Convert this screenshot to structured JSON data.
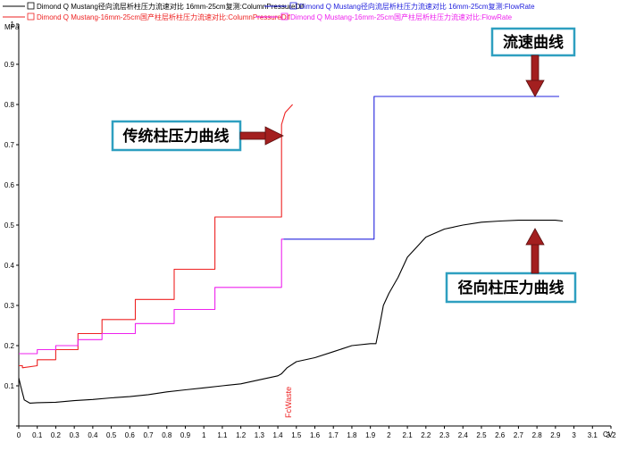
{
  "legend": [
    {
      "text": "Dimond Q Mustang径向流层析柱压力流速对比 16mm-25cm复测:ColumnPressureDif",
      "color": "#000000"
    },
    {
      "text": "Dimond Q Mustang径向流层析柱压力流速对比 16mm-25cm复测:FlowRate",
      "color": "#2222dd"
    },
    {
      "text": "Dimond Q Mustang-16mm-25cm国产柱层析柱压力流速对比:ColumnPressureDif",
      "color": "#ee2222"
    },
    {
      "text": "Dimond Q Mustang-16mm-25cm国产柱层析柱压力流速对比:FlowRate",
      "color": "#ee22ee"
    }
  ],
  "callouts": {
    "flow": "流速曲线",
    "traditional": "传统柱压力曲线",
    "radial": "径向柱压力曲线"
  },
  "annotation": "FcWaste",
  "chart_data": {
    "type": "line",
    "ylabel": "MPa",
    "xlabel": "CV",
    "xlim": [
      0,
      3.2
    ],
    "ylim": [
      0,
      1.0
    ],
    "x_ticks": [
      "0",
      "0.1",
      "0.2",
      "0.3",
      "0.4",
      "0.5",
      "0.6",
      "0.7",
      "0.8",
      "0.9",
      "1",
      "1.1",
      "1.2",
      "1.3",
      "1.4",
      "1.5",
      "1.6",
      "1.7",
      "1.8",
      "1.9",
      "2",
      "2.1",
      "2.2",
      "2.3",
      "2.4",
      "2.5",
      "2.6",
      "2.7",
      "2.8",
      "2.9",
      "3",
      "3.1",
      "3.2"
    ],
    "y_ticks": [
      "0",
      "0.1",
      "0.2",
      "0.3",
      "0.4",
      "0.5",
      "0.6",
      "0.7",
      "0.8",
      "0.9",
      "1"
    ],
    "series": [
      {
        "name": "Dimond Q Mustang径向流层析柱压力流速对比 16mm-25cm复测:ColumnPressureDif",
        "color": "#000000",
        "x": [
          0,
          0.01,
          0.03,
          0.06,
          0.1,
          0.2,
          0.3,
          0.4,
          0.5,
          0.6,
          0.7,
          0.8,
          0.9,
          1.0,
          1.1,
          1.2,
          1.3,
          1.4,
          1.42,
          1.45,
          1.5,
          1.6,
          1.7,
          1.8,
          1.9,
          1.93,
          1.95,
          1.97,
          2.0,
          2.05,
          2.1,
          2.2,
          2.3,
          2.4,
          2.5,
          2.6,
          2.7,
          2.8,
          2.9,
          2.94
        ],
        "y": [
          0.12,
          0.1,
          0.065,
          0.057,
          0.058,
          0.059,
          0.063,
          0.066,
          0.07,
          0.073,
          0.078,
          0.085,
          0.09,
          0.095,
          0.1,
          0.105,
          0.115,
          0.125,
          0.13,
          0.145,
          0.16,
          0.17,
          0.185,
          0.2,
          0.205,
          0.205,
          0.25,
          0.3,
          0.33,
          0.37,
          0.42,
          0.47,
          0.49,
          0.5,
          0.507,
          0.51,
          0.512,
          0.512,
          0.512,
          0.51
        ]
      },
      {
        "name": "Dimond Q Mustang径向流层析柱压力流速对比 16mm-25cm复测:FlowRate",
        "color": "#2222dd",
        "x": [
          1.43,
          1.92,
          1.92,
          2.92
        ],
        "y": [
          0.465,
          0.465,
          0.82,
          0.82
        ]
      },
      {
        "name": "Dimond Q Mustang-16mm-25cm国产柱层析柱压力流速对比:ColumnPressureDif",
        "color": "#ee2222",
        "x": [
          0,
          0.02,
          0.02,
          0.1,
          0.1,
          0.2,
          0.2,
          0.32,
          0.32,
          0.45,
          0.45,
          0.63,
          0.63,
          0.84,
          0.84,
          1.06,
          1.06,
          1.42,
          1.42,
          1.44,
          1.48
        ],
        "y": [
          0.15,
          0.15,
          0.145,
          0.15,
          0.165,
          0.165,
          0.19,
          0.19,
          0.23,
          0.23,
          0.265,
          0.265,
          0.315,
          0.315,
          0.39,
          0.39,
          0.52,
          0.52,
          0.75,
          0.78,
          0.8
        ]
      },
      {
        "name": "Dimond Q Mustang-16mm-25cm国产柱层析柱压力流速对比:FlowRate",
        "color": "#ee22ee",
        "x": [
          0,
          0.1,
          0.1,
          0.2,
          0.2,
          0.32,
          0.32,
          0.45,
          0.45,
          0.63,
          0.63,
          0.84,
          0.84,
          1.06,
          1.06,
          1.42,
          1.42,
          1.43
        ],
        "y": [
          0.18,
          0.18,
          0.19,
          0.19,
          0.2,
          0.2,
          0.215,
          0.215,
          0.23,
          0.23,
          0.255,
          0.255,
          0.29,
          0.29,
          0.345,
          0.345,
          0.465,
          0.465
        ]
      }
    ],
    "grid": false,
    "legend_position": "top"
  }
}
